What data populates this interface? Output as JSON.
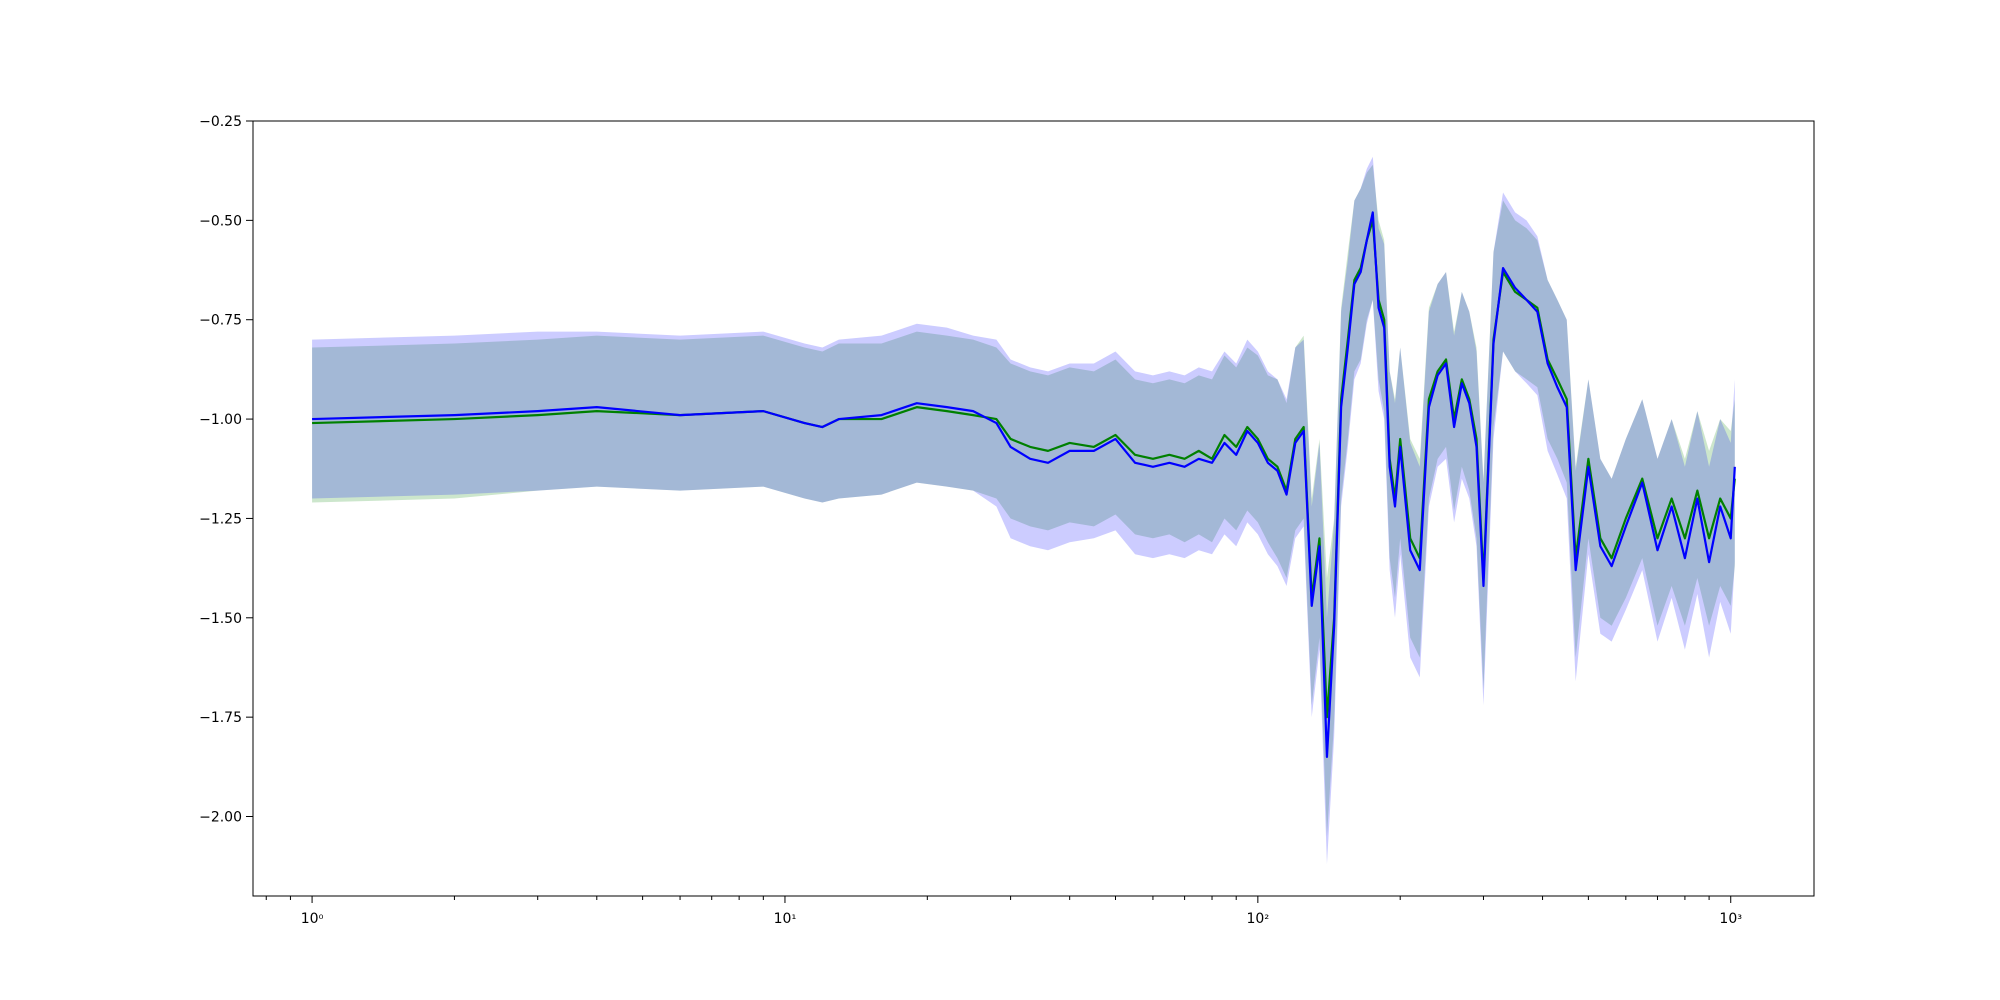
{
  "chart_data": {
    "type": "line",
    "title": "",
    "xlabel": "",
    "ylabel": "",
    "xscale": "log",
    "xlim": [
      0.75,
      1500
    ],
    "ylim": [
      -2.2,
      -0.25
    ],
    "grid": false,
    "legend": "none",
    "x_ticks": [
      {
        "value": 1,
        "label": "10⁰"
      },
      {
        "value": 10,
        "label": "10¹"
      },
      {
        "value": 100,
        "label": "10²"
      },
      {
        "value": 1000,
        "label": "10³"
      }
    ],
    "y_ticks": [
      {
        "value": -0.25,
        "label": "−0.25"
      },
      {
        "value": -0.5,
        "label": "−0.50"
      },
      {
        "value": -0.75,
        "label": "−0.75"
      },
      {
        "value": -1.0,
        "label": "−1.00"
      },
      {
        "value": -1.25,
        "label": "−1.25"
      },
      {
        "value": -1.5,
        "label": "−1.50"
      },
      {
        "value": -1.75,
        "label": "−1.75"
      },
      {
        "value": -2.0,
        "label": "−2.00"
      }
    ],
    "series": [
      {
        "color": "#008000",
        "band_color": "#008000",
        "points": [
          [
            1,
            -1.01,
            -0.82,
            -1.21
          ],
          [
            2,
            -1.0,
            -0.81,
            -1.2
          ],
          [
            3,
            -0.99,
            -0.8,
            -1.18
          ],
          [
            4,
            -0.98,
            -0.79,
            -1.17
          ],
          [
            6,
            -0.99,
            -0.8,
            -1.18
          ],
          [
            9,
            -0.98,
            -0.79,
            -1.17
          ],
          [
            11,
            -1.01,
            -0.82,
            -1.2
          ],
          [
            12,
            -1.02,
            -0.83,
            -1.21
          ],
          [
            13,
            -1.0,
            -0.81,
            -1.2
          ],
          [
            16,
            -1.0,
            -0.81,
            -1.19
          ],
          [
            19,
            -0.97,
            -0.78,
            -1.16
          ],
          [
            22,
            -0.98,
            -0.79,
            -1.17
          ],
          [
            25,
            -0.99,
            -0.8,
            -1.18
          ],
          [
            28,
            -1.0,
            -0.82,
            -1.2
          ],
          [
            30,
            -1.05,
            -0.86,
            -1.25
          ],
          [
            33,
            -1.07,
            -0.88,
            -1.27
          ],
          [
            36,
            -1.08,
            -0.89,
            -1.28
          ],
          [
            40,
            -1.06,
            -0.87,
            -1.26
          ],
          [
            45,
            -1.07,
            -0.88,
            -1.27
          ],
          [
            50,
            -1.04,
            -0.85,
            -1.24
          ],
          [
            55,
            -1.09,
            -0.9,
            -1.29
          ],
          [
            60,
            -1.1,
            -0.91,
            -1.3
          ],
          [
            65,
            -1.09,
            -0.9,
            -1.29
          ],
          [
            70,
            -1.1,
            -0.91,
            -1.31
          ],
          [
            75,
            -1.08,
            -0.89,
            -1.29
          ],
          [
            80,
            -1.1,
            -0.9,
            -1.31
          ],
          [
            85,
            -1.04,
            -0.84,
            -1.25
          ],
          [
            90,
            -1.07,
            -0.87,
            -1.28
          ],
          [
            95,
            -1.02,
            -0.82,
            -1.23
          ],
          [
            100,
            -1.05,
            -0.84,
            -1.26
          ],
          [
            105,
            -1.1,
            -0.89,
            -1.31
          ],
          [
            110,
            -1.12,
            -0.9,
            -1.35
          ],
          [
            115,
            -1.18,
            -0.96,
            -1.4
          ],
          [
            120,
            -1.05,
            -0.82,
            -1.28
          ],
          [
            125,
            -1.02,
            -0.79,
            -1.25
          ],
          [
            130,
            -1.45,
            -1.2,
            -1.72
          ],
          [
            135,
            -1.3,
            -1.05,
            -1.55
          ],
          [
            140,
            -1.75,
            -1.4,
            -2.05
          ],
          [
            145,
            -1.5,
            -1.25,
            -1.76
          ],
          [
            150,
            -0.95,
            -0.72,
            -1.2
          ],
          [
            155,
            -0.8,
            -0.58,
            -1.05
          ],
          [
            160,
            -0.65,
            -0.45,
            -0.88
          ],
          [
            165,
            -0.62,
            -0.42,
            -0.85
          ],
          [
            170,
            -0.55,
            -0.38,
            -0.75
          ],
          [
            175,
            -0.5,
            -0.36,
            -0.7
          ],
          [
            180,
            -0.7,
            -0.5,
            -0.9
          ],
          [
            185,
            -0.75,
            -0.55,
            -0.98
          ],
          [
            190,
            -1.1,
            -0.88,
            -1.35
          ],
          [
            195,
            -1.2,
            -0.95,
            -1.45
          ],
          [
            200,
            -1.05,
            -0.82,
            -1.3
          ],
          [
            210,
            -1.3,
            -1.05,
            -1.55
          ],
          [
            220,
            -1.35,
            -1.1,
            -1.6
          ],
          [
            230,
            -0.95,
            -0.72,
            -1.2
          ],
          [
            240,
            -0.88,
            -0.66,
            -1.1
          ],
          [
            250,
            -0.85,
            -0.63,
            -1.07
          ],
          [
            260,
            -1.0,
            -0.78,
            -1.23
          ],
          [
            270,
            -0.9,
            -0.68,
            -1.12
          ],
          [
            280,
            -0.95,
            -0.73,
            -1.18
          ],
          [
            290,
            -1.05,
            -0.82,
            -1.3
          ],
          [
            300,
            -1.4,
            -1.15,
            -1.68
          ],
          [
            315,
            -0.8,
            -0.58,
            -1.02
          ],
          [
            330,
            -0.63,
            -0.45,
            -0.83
          ],
          [
            350,
            -0.68,
            -0.5,
            -0.88
          ],
          [
            370,
            -0.7,
            -0.52,
            -0.9
          ],
          [
            390,
            -0.72,
            -0.55,
            -0.92
          ],
          [
            410,
            -0.85,
            -0.65,
            -1.05
          ],
          [
            430,
            -0.9,
            -0.7,
            -1.1
          ],
          [
            450,
            -0.95,
            -0.75,
            -1.16
          ],
          [
            470,
            -1.35,
            -1.12,
            -1.6
          ],
          [
            500,
            -1.1,
            -0.9,
            -1.3
          ],
          [
            530,
            -1.3,
            -1.1,
            -1.5
          ],
          [
            560,
            -1.35,
            -1.15,
            -1.52
          ],
          [
            600,
            -1.25,
            -1.05,
            -1.45
          ],
          [
            650,
            -1.15,
            -0.95,
            -1.35
          ],
          [
            700,
            -1.3,
            -1.1,
            -1.52
          ],
          [
            750,
            -1.2,
            -1.0,
            -1.42
          ],
          [
            800,
            -1.3,
            -1.1,
            -1.52
          ],
          [
            850,
            -1.18,
            -0.98,
            -1.4
          ],
          [
            900,
            -1.3,
            -1.08,
            -1.52
          ],
          [
            950,
            -1.2,
            -1.0,
            -1.42
          ],
          [
            1000,
            -1.25,
            -1.03,
            -1.47
          ],
          [
            1020,
            -1.15,
            -0.95,
            -1.37
          ]
        ]
      },
      {
        "color": "#0000ff",
        "band_color": "#0000ff",
        "points": [
          [
            1,
            -1.0,
            -0.8,
            -1.2
          ],
          [
            2,
            -0.99,
            -0.79,
            -1.19
          ],
          [
            3,
            -0.98,
            -0.78,
            -1.18
          ],
          [
            4,
            -0.97,
            -0.78,
            -1.17
          ],
          [
            6,
            -0.99,
            -0.79,
            -1.18
          ],
          [
            9,
            -0.98,
            -0.78,
            -1.17
          ],
          [
            11,
            -1.01,
            -0.81,
            -1.2
          ],
          [
            12,
            -1.02,
            -0.82,
            -1.21
          ],
          [
            13,
            -1.0,
            -0.8,
            -1.2
          ],
          [
            16,
            -0.99,
            -0.79,
            -1.19
          ],
          [
            19,
            -0.96,
            -0.76,
            -1.16
          ],
          [
            22,
            -0.97,
            -0.77,
            -1.17
          ],
          [
            25,
            -0.98,
            -0.79,
            -1.18
          ],
          [
            28,
            -1.01,
            -0.8,
            -1.22
          ],
          [
            30,
            -1.07,
            -0.85,
            -1.3
          ],
          [
            33,
            -1.1,
            -0.87,
            -1.32
          ],
          [
            36,
            -1.11,
            -0.88,
            -1.33
          ],
          [
            40,
            -1.08,
            -0.86,
            -1.31
          ],
          [
            45,
            -1.08,
            -0.86,
            -1.3
          ],
          [
            50,
            -1.05,
            -0.83,
            -1.28
          ],
          [
            55,
            -1.11,
            -0.88,
            -1.34
          ],
          [
            60,
            -1.12,
            -0.89,
            -1.35
          ],
          [
            65,
            -1.11,
            -0.88,
            -1.34
          ],
          [
            70,
            -1.12,
            -0.89,
            -1.35
          ],
          [
            75,
            -1.1,
            -0.87,
            -1.33
          ],
          [
            80,
            -1.11,
            -0.88,
            -1.34
          ],
          [
            85,
            -1.06,
            -0.83,
            -1.29
          ],
          [
            90,
            -1.09,
            -0.86,
            -1.32
          ],
          [
            95,
            -1.03,
            -0.8,
            -1.26
          ],
          [
            100,
            -1.06,
            -0.83,
            -1.29
          ],
          [
            105,
            -1.11,
            -0.88,
            -1.34
          ],
          [
            110,
            -1.13,
            -0.9,
            -1.37
          ],
          [
            115,
            -1.19,
            -0.95,
            -1.42
          ],
          [
            120,
            -1.06,
            -0.82,
            -1.3
          ],
          [
            125,
            -1.03,
            -0.8,
            -1.27
          ],
          [
            130,
            -1.47,
            -1.22,
            -1.75
          ],
          [
            135,
            -1.32,
            -1.06,
            -1.58
          ],
          [
            140,
            -1.85,
            -1.5,
            -2.12
          ],
          [
            145,
            -1.52,
            -1.26,
            -1.8
          ],
          [
            150,
            -0.97,
            -0.73,
            -1.22
          ],
          [
            155,
            -0.82,
            -0.6,
            -1.07
          ],
          [
            160,
            -0.66,
            -0.45,
            -0.9
          ],
          [
            165,
            -0.63,
            -0.42,
            -0.86
          ],
          [
            170,
            -0.55,
            -0.37,
            -0.76
          ],
          [
            175,
            -0.48,
            -0.34,
            -0.7
          ],
          [
            180,
            -0.72,
            -0.52,
            -0.93
          ],
          [
            185,
            -0.77,
            -0.56,
            -1.0
          ],
          [
            190,
            -1.12,
            -0.88,
            -1.38
          ],
          [
            195,
            -1.22,
            -0.96,
            -1.5
          ],
          [
            200,
            -1.07,
            -0.82,
            -1.34
          ],
          [
            210,
            -1.33,
            -1.06,
            -1.6
          ],
          [
            220,
            -1.38,
            -1.12,
            -1.65
          ],
          [
            230,
            -0.97,
            -0.73,
            -1.22
          ],
          [
            240,
            -0.89,
            -0.66,
            -1.12
          ],
          [
            250,
            -0.86,
            -0.63,
            -1.1
          ],
          [
            260,
            -1.02,
            -0.79,
            -1.26
          ],
          [
            270,
            -0.91,
            -0.68,
            -1.15
          ],
          [
            280,
            -0.96,
            -0.73,
            -1.2
          ],
          [
            290,
            -1.07,
            -0.83,
            -1.32
          ],
          [
            300,
            -1.42,
            -1.16,
            -1.72
          ],
          [
            315,
            -0.81,
            -0.58,
            -1.05
          ],
          [
            330,
            -0.62,
            -0.43,
            -0.83
          ],
          [
            350,
            -0.67,
            -0.48,
            -0.88
          ],
          [
            370,
            -0.7,
            -0.5,
            -0.91
          ],
          [
            390,
            -0.73,
            -0.54,
            -0.94
          ],
          [
            410,
            -0.86,
            -0.65,
            -1.08
          ],
          [
            430,
            -0.92,
            -0.7,
            -1.14
          ],
          [
            450,
            -0.97,
            -0.75,
            -1.2
          ],
          [
            470,
            -1.38,
            -1.13,
            -1.66
          ],
          [
            500,
            -1.12,
            -0.9,
            -1.34
          ],
          [
            530,
            -1.32,
            -1.1,
            -1.54
          ],
          [
            560,
            -1.37,
            -1.15,
            -1.56
          ],
          [
            600,
            -1.27,
            -1.05,
            -1.48
          ],
          [
            650,
            -1.16,
            -0.95,
            -1.38
          ],
          [
            700,
            -1.33,
            -1.1,
            -1.56
          ],
          [
            750,
            -1.22,
            -1.0,
            -1.45
          ],
          [
            800,
            -1.35,
            -1.12,
            -1.58
          ],
          [
            850,
            -1.2,
            -0.98,
            -1.44
          ],
          [
            900,
            -1.36,
            -1.12,
            -1.6
          ],
          [
            950,
            -1.22,
            -1.0,
            -1.46
          ],
          [
            1000,
            -1.3,
            -1.06,
            -1.54
          ],
          [
            1020,
            -1.12,
            -0.9,
            -1.36
          ]
        ]
      }
    ]
  }
}
